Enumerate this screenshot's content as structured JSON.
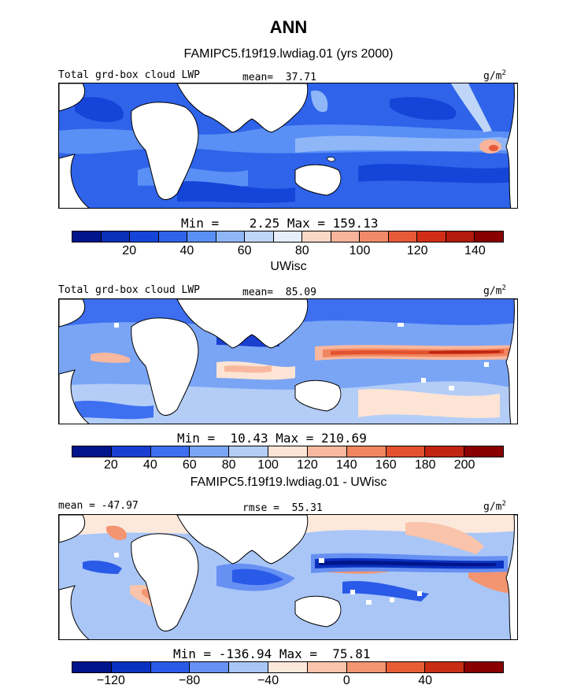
{
  "title": "ANN",
  "panels": [
    {
      "subtitle": "FAMIPC5.f19f19.lwdiag.01 (yrs 2000)",
      "left_label": "Total grd-box cloud LWP",
      "mid_label": "mean=  37.71",
      "units_base": "g/m",
      "units_exp": "2",
      "minmax": "Min =    2.25 Max = 159.13",
      "colorbar": {
        "colors": [
          "#00158c",
          "#0a2fb8",
          "#1545d8",
          "#2e63ea",
          "#5a8ff5",
          "#8fb7f8",
          "#c0d6f8",
          "#e6eefa",
          "#fbd9c8",
          "#f7b49a",
          "#f08a68",
          "#e65a38",
          "#d22d17",
          "#b21a0b",
          "#880000"
        ],
        "tick_labels": [
          "20",
          "40",
          "60",
          "80",
          "100",
          "120",
          "140"
        ],
        "tick_boundaries": [
          2,
          4,
          6,
          8,
          10,
          12,
          14
        ]
      }
    },
    {
      "subtitle": "UWisc",
      "left_label": "Total grd-box cloud LWP",
      "mid_label": "mean=  85.09",
      "units_base": "g/m",
      "units_exp": "2",
      "minmax": "Min =  10.43 Max = 210.69",
      "colorbar": {
        "colors": [
          "#00158c",
          "#1a3fd0",
          "#3d6ff0",
          "#7aa5f5",
          "#b3cdf7",
          "#fde4d4",
          "#f8b89f",
          "#f1855f",
          "#e3512f",
          "#bf2510",
          "#880000"
        ],
        "tick_labels": [
          "20",
          "40",
          "60",
          "80",
          "100",
          "120",
          "140",
          "160",
          "180",
          "200"
        ],
        "tick_boundaries": [
          1,
          2,
          3,
          4,
          5,
          6,
          7,
          8,
          9,
          10
        ]
      }
    },
    {
      "subtitle": "FAMIPC5.f19f19.lwdiag.01 - UWisc",
      "left_label": "mean = -47.97",
      "mid_label": "rmse =  55.31",
      "units_base": "g/m",
      "units_exp": "2",
      "minmax": "Min = -136.94 Max =  75.81",
      "colorbar": {
        "colors": [
          "#00158c",
          "#0a32c0",
          "#2a5ae8",
          "#6790f3",
          "#a9c6f7",
          "#fde8dc",
          "#f9c4ab",
          "#f39570",
          "#e85d36",
          "#c72e13",
          "#880000"
        ],
        "tick_labels": [
          "-120",
          "-80",
          "-40",
          "0",
          "40"
        ],
        "tick_boundaries": [
          1,
          3,
          5,
          7,
          9
        ]
      }
    }
  ]
}
